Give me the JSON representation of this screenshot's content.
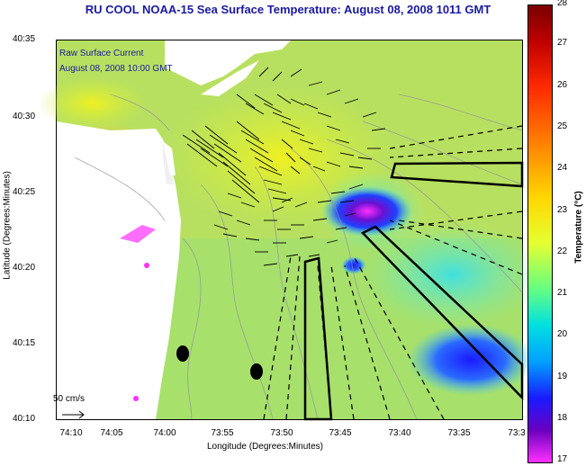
{
  "title": "RU COOL  NOAA-15  Sea Surface Temperature:  August 08, 2008 1011 GMT",
  "overlay": {
    "line1": "Raw Surface Current",
    "line2": "August 08, 2008 10:00 GMT"
  },
  "scale_label": "50 cm/s",
  "axes": {
    "xlabel": "Longitude (Degrees:Minutes)",
    "ylabel": "Latitude (Degrees:Minutes)",
    "xticks": [
      "74:10",
      "74:05",
      "74:00",
      "73:55",
      "73:50",
      "73:45",
      "73:40",
      "73:35",
      "73:3"
    ],
    "yticks": [
      "40:35",
      "40:30",
      "40:25",
      "40:20",
      "40:15",
      "40:10"
    ]
  },
  "colorbar": {
    "label": "Temperature (°C)",
    "ticks": [
      "28",
      "27",
      "26",
      "25",
      "24",
      "23",
      "22",
      "21",
      "20",
      "19",
      "18",
      "17"
    ],
    "min": 17,
    "max": 28
  },
  "colors": {
    "title": "#1a1aa0",
    "land": "#ffffff",
    "water_base": "#c8e84a"
  }
}
